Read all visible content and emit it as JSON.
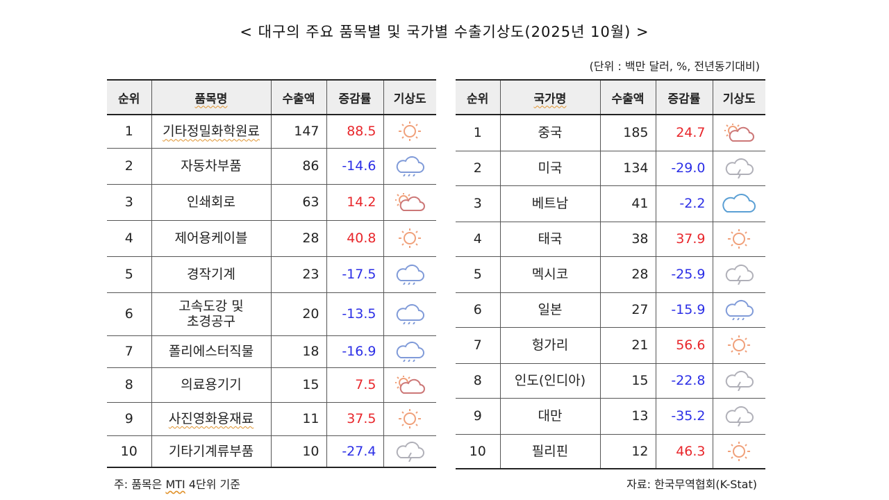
{
  "title": "< 대구의 주요 품목별 및 국가별 수출기상도(2025년 10월) >",
  "unit": "(단위 : 백만 달러, %, 전년동기대비)",
  "items_table": {
    "headers": [
      "순위",
      "품목명",
      "수출액",
      "증감률",
      "기상도"
    ],
    "rows": [
      {
        "rank": "1",
        "name": "기타정밀화학원료",
        "amount": "147",
        "change": "88.5",
        "weather": "sunny"
      },
      {
        "rank": "2",
        "name": "자동차부품",
        "amount": "86",
        "change": "-14.6",
        "weather": "rain"
      },
      {
        "rank": "3",
        "name": "인쇄회로",
        "amount": "63",
        "change": "14.2",
        "weather": "partly-cloudy"
      },
      {
        "rank": "4",
        "name": "제어용케이블",
        "amount": "28",
        "change": "40.8",
        "weather": "sunny"
      },
      {
        "rank": "5",
        "name": "경작기계",
        "amount": "23",
        "change": "-17.5",
        "weather": "rain"
      },
      {
        "rank": "6",
        "name": "고속도강 및\n초경공구",
        "amount": "20",
        "change": "-13.5",
        "weather": "rain"
      },
      {
        "rank": "7",
        "name": "폴리에스터직물",
        "amount": "18",
        "change": "-16.9",
        "weather": "rain"
      },
      {
        "rank": "8",
        "name": "의료용기기",
        "amount": "15",
        "change": "7.5",
        "weather": "partly-cloudy"
      },
      {
        "rank": "9",
        "name": "사진영화용재료",
        "amount": "11",
        "change": "37.5",
        "weather": "sunny"
      },
      {
        "rank": "10",
        "name": "기타기계류부품",
        "amount": "10",
        "change": "-27.4",
        "weather": "thunder"
      }
    ]
  },
  "countries_table": {
    "headers": [
      "순위",
      "국가명",
      "수출액",
      "증감률",
      "기상도"
    ],
    "rows": [
      {
        "rank": "1",
        "name": "중국",
        "amount": "185",
        "change": "24.7",
        "weather": "partly-cloudy"
      },
      {
        "rank": "2",
        "name": "미국",
        "amount": "134",
        "change": "-29.0",
        "weather": "thunder"
      },
      {
        "rank": "3",
        "name": "베트남",
        "amount": "41",
        "change": "-2.2",
        "weather": "cloudy"
      },
      {
        "rank": "4",
        "name": "태국",
        "amount": "38",
        "change": "37.9",
        "weather": "sunny"
      },
      {
        "rank": "5",
        "name": "멕시코",
        "amount": "28",
        "change": "-25.9",
        "weather": "thunder"
      },
      {
        "rank": "6",
        "name": "일본",
        "amount": "27",
        "change": "-15.9",
        "weather": "rain"
      },
      {
        "rank": "7",
        "name": "헝가리",
        "amount": "21",
        "change": "56.6",
        "weather": "sunny"
      },
      {
        "rank": "8",
        "name": "인도(인디아)",
        "amount": "15",
        "change": "-22.8",
        "weather": "thunder"
      },
      {
        "rank": "9",
        "name": "대만",
        "amount": "13",
        "change": "-35.2",
        "weather": "thunder"
      },
      {
        "rank": "10",
        "name": "필리핀",
        "amount": "12",
        "change": "46.3",
        "weather": "sunny"
      }
    ]
  },
  "note": "주: 품목은 MTI 4단위 기준",
  "note_parts": {
    "prefix": "주: 품목은 ",
    "mti": "MTI",
    "suffix": " 4단위 기준"
  },
  "source": "자료: 한국무역협회(K-Stat)",
  "colors": {
    "positive": "#e8262b",
    "negative": "#2b2ee6",
    "sun": "#f0a07a",
    "cloud": "#b0b0b8",
    "rain": "#7f9ad8",
    "cloudy": "#5a9fd4"
  }
}
